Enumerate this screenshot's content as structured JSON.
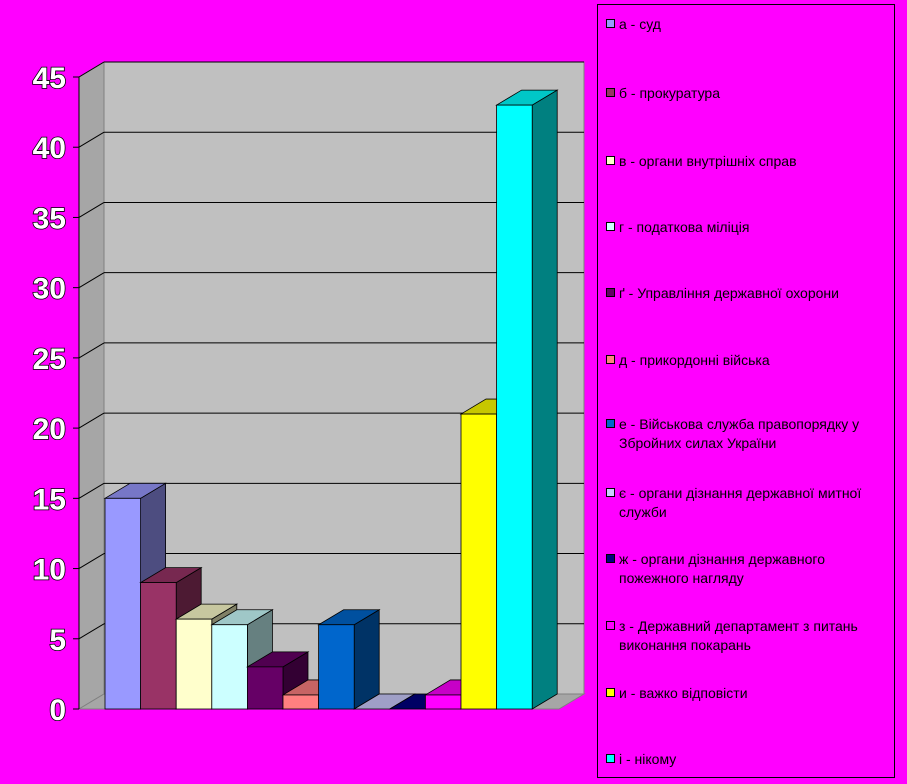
{
  "chart_data": {
    "type": "bar",
    "ylim": [
      0,
      45
    ],
    "yticks": [
      "0",
      "5",
      "10",
      "15",
      "20",
      "25",
      "30",
      "35",
      "40",
      "45"
    ],
    "grid": true,
    "legend_position": "right",
    "categories": [
      "а - суд",
      "б - прокуратура",
      "в - органи внутрішніх справ",
      "г - податкова міліція",
      "ґ - Управління державної охорони",
      "д - прикордонні війська",
      "е - Військова служба правопорядку у Збройних силах України",
      "є - органи дізнання державної митної служби",
      "ж - органи дізнання державного пожежного нагляду",
      "з - Державний департамент з питань виконання покарань",
      "и - важко відповісти",
      "і - нікому"
    ],
    "values": [
      15,
      9,
      6.4,
      6,
      3,
      1,
      6,
      0,
      0,
      1,
      21,
      43
    ],
    "colors": [
      "#9999FF",
      "#993366",
      "#FFFFCC",
      "#CCFFFF",
      "#660066",
      "#FF8080",
      "#0066CC",
      "#CCCCFF",
      "#000080",
      "#FF00FF",
      "#FFFF00",
      "#00FFFF"
    ]
  }
}
